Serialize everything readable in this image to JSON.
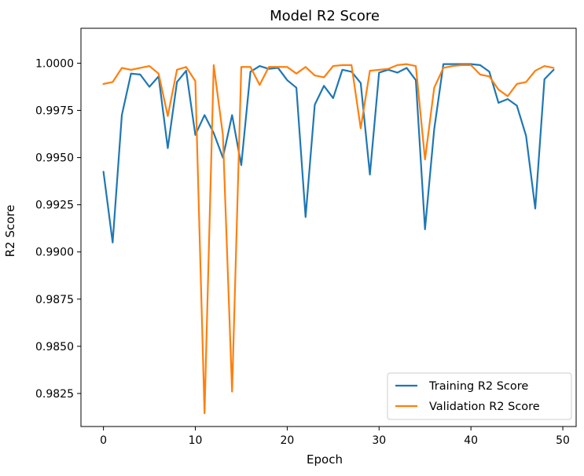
{
  "chart_data": {
    "type": "line",
    "title": "Model R2 Score",
    "xlabel": "Epoch",
    "ylabel": "R2 Score",
    "xlim": [
      -2.45,
      51.45
    ],
    "ylim": [
      0.98075,
      1.00185
    ],
    "xticks": [
      0,
      10,
      20,
      30,
      40,
      50
    ],
    "xtick_labels": [
      "0",
      "10",
      "20",
      "30",
      "40",
      "50"
    ],
    "yticks": [
      0.9825,
      0.985,
      0.9875,
      0.99,
      0.9925,
      0.995,
      0.9975,
      1.0
    ],
    "ytick_labels": [
      "0.9825",
      "0.9850",
      "0.9875",
      "0.9900",
      "0.9925",
      "0.9950",
      "0.9975",
      "1.0000"
    ],
    "grid": false,
    "legend_position": "lower right",
    "x": [
      0,
      1,
      2,
      3,
      4,
      5,
      6,
      7,
      8,
      9,
      10,
      11,
      12,
      13,
      14,
      15,
      16,
      17,
      18,
      19,
      20,
      21,
      22,
      23,
      24,
      25,
      26,
      27,
      28,
      29,
      30,
      31,
      32,
      33,
      34,
      35,
      36,
      37,
      38,
      39,
      40,
      41,
      42,
      43,
      44,
      45,
      46,
      47,
      48,
      49
    ],
    "series": [
      {
        "name": "Training R2 Score",
        "color": "#1f77b4",
        "values": [
          0.99425,
          0.9905,
          0.99725,
          0.99945,
          0.9994,
          0.99875,
          0.9993,
          0.9955,
          0.999,
          0.9996,
          0.9962,
          0.99725,
          0.9963,
          0.995,
          0.99725,
          0.9946,
          0.99955,
          0.99985,
          0.9997,
          0.99975,
          0.9991,
          0.9987,
          0.99185,
          0.9978,
          0.9988,
          0.99815,
          0.99965,
          0.99955,
          0.99895,
          0.9941,
          0.9995,
          0.99965,
          0.9995,
          0.99975,
          0.9991,
          0.9912,
          0.9965,
          0.99995,
          0.99995,
          0.99995,
          0.99995,
          0.9999,
          0.99955,
          0.9979,
          0.9981,
          0.99775,
          0.99615,
          0.9923,
          0.99915,
          0.99965
        ]
      },
      {
        "name": "Validation R2 Score",
        "color": "#ff7f0e",
        "values": [
          0.9989,
          0.999,
          0.99975,
          0.99965,
          0.99975,
          0.99985,
          0.99945,
          0.9972,
          0.99965,
          0.9998,
          0.99905,
          0.98145,
          0.9999,
          0.9962,
          0.9826,
          0.9998,
          0.9998,
          0.99885,
          0.9998,
          0.9998,
          0.9998,
          0.99945,
          0.9998,
          0.99935,
          0.99925,
          0.99985,
          0.9999,
          0.9999,
          0.99655,
          0.9996,
          0.99965,
          0.9997,
          0.9999,
          0.99995,
          0.99985,
          0.9949,
          0.9987,
          0.99975,
          0.99985,
          0.9999,
          0.9999,
          0.9994,
          0.9993,
          0.9986,
          0.99825,
          0.9989,
          0.999,
          0.9996,
          0.99985,
          0.99975
        ]
      }
    ]
  }
}
